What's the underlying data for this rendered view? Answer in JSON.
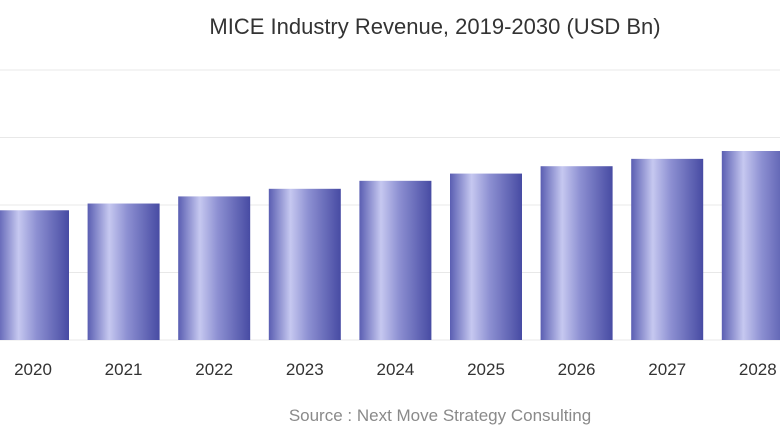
{
  "chart_data": {
    "type": "bar",
    "title": "MICE Industry Revenue, 2019-2030 (USD Bn)",
    "source": "Source : Next Move Strategy Consulting",
    "categories": [
      "2020",
      "2021",
      "2022",
      "2023",
      "2024",
      "2025",
      "2026",
      "2027",
      "2028"
    ],
    "values": [
      1057,
      1112,
      1170,
      1232,
      1297,
      1356,
      1416,
      1476,
      1540
    ],
    "ylim": [
      0,
      2200
    ],
    "grid": true,
    "legend": "none",
    "colors": {
      "bar_dark": "#4a4ea6",
      "bar_light": "#c9cbf2",
      "grid": "#e8e8e8",
      "tick": "#333333"
    }
  }
}
